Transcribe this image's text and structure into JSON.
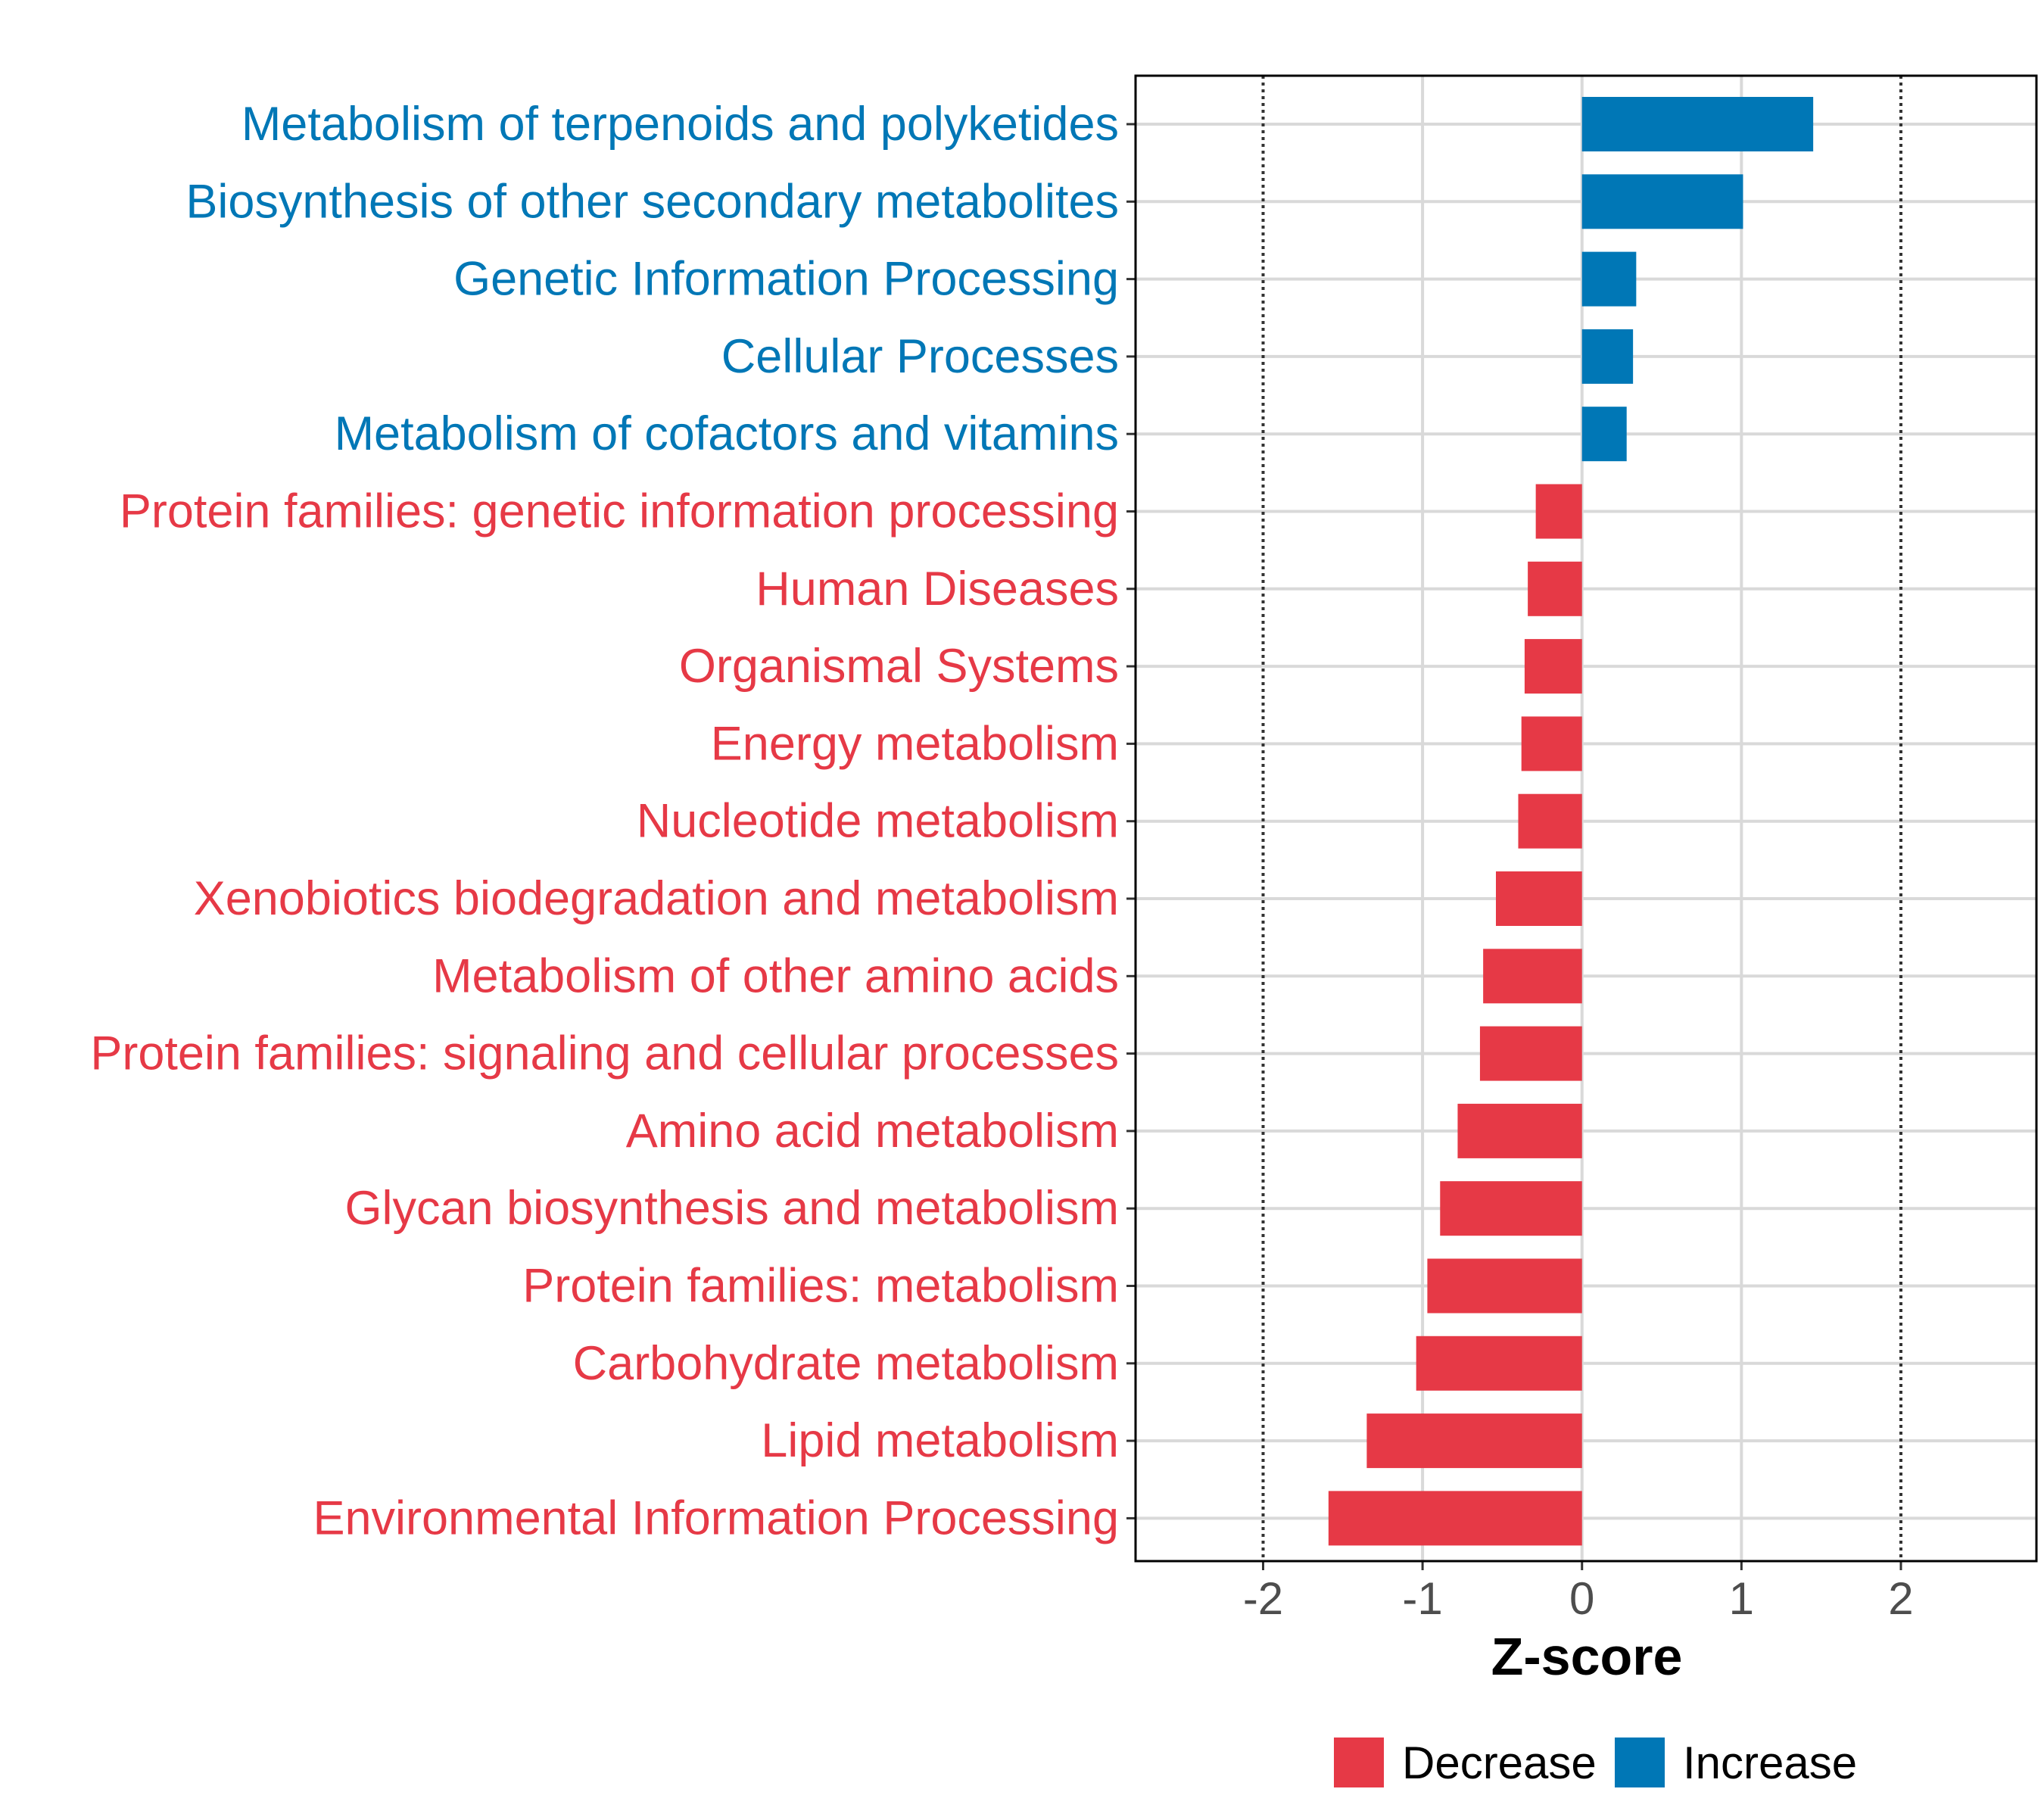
{
  "chart_data": {
    "type": "bar",
    "orientation": "horizontal",
    "xlabel": "Z-score",
    "xlim": [
      -2.8,
      2.85
    ],
    "x_ticks": [
      -2,
      -1,
      0,
      1,
      2
    ],
    "x_tick_labels": [
      "-2",
      "-1",
      "0",
      "1",
      "2"
    ],
    "reference_lines": [
      -2,
      2
    ],
    "grid": true,
    "categories": [
      "Metabolism of terpenoids and polyketides",
      "Biosynthesis of other secondary metabolites",
      "Genetic Information Processing",
      "Cellular Processes",
      "Metabolism of cofactors and vitamins",
      "Protein families: genetic information processing",
      "Human Diseases",
      "Organismal Systems",
      "Energy metabolism",
      "Nucleotide metabolism",
      "Xenobiotics biodegradation and metabolism",
      "Metabolism of other amino acids",
      "Protein families: signaling and cellular processes",
      "Amino acid metabolism",
      "Glycan biosynthesis and metabolism",
      "Protein families: metabolism",
      "Carbohydrate metabolism",
      "Lipid metabolism",
      "Environmental Information Processing"
    ],
    "values": [
      1.45,
      1.01,
      0.34,
      0.32,
      0.28,
      -0.29,
      -0.34,
      -0.36,
      -0.38,
      -0.4,
      -0.54,
      -0.62,
      -0.64,
      -0.78,
      -0.89,
      -0.97,
      -1.04,
      -1.35,
      -1.59
    ],
    "groups": [
      "Increase",
      "Increase",
      "Increase",
      "Increase",
      "Increase",
      "Decrease",
      "Decrease",
      "Decrease",
      "Decrease",
      "Decrease",
      "Decrease",
      "Decrease",
      "Decrease",
      "Decrease",
      "Decrease",
      "Decrease",
      "Decrease",
      "Decrease",
      "Decrease"
    ],
    "legend": {
      "position": "bottom",
      "entries": [
        {
          "label": "Decrease",
          "color": "#e63946"
        },
        {
          "label": "Increase",
          "color": "#0077b6"
        }
      ]
    }
  }
}
